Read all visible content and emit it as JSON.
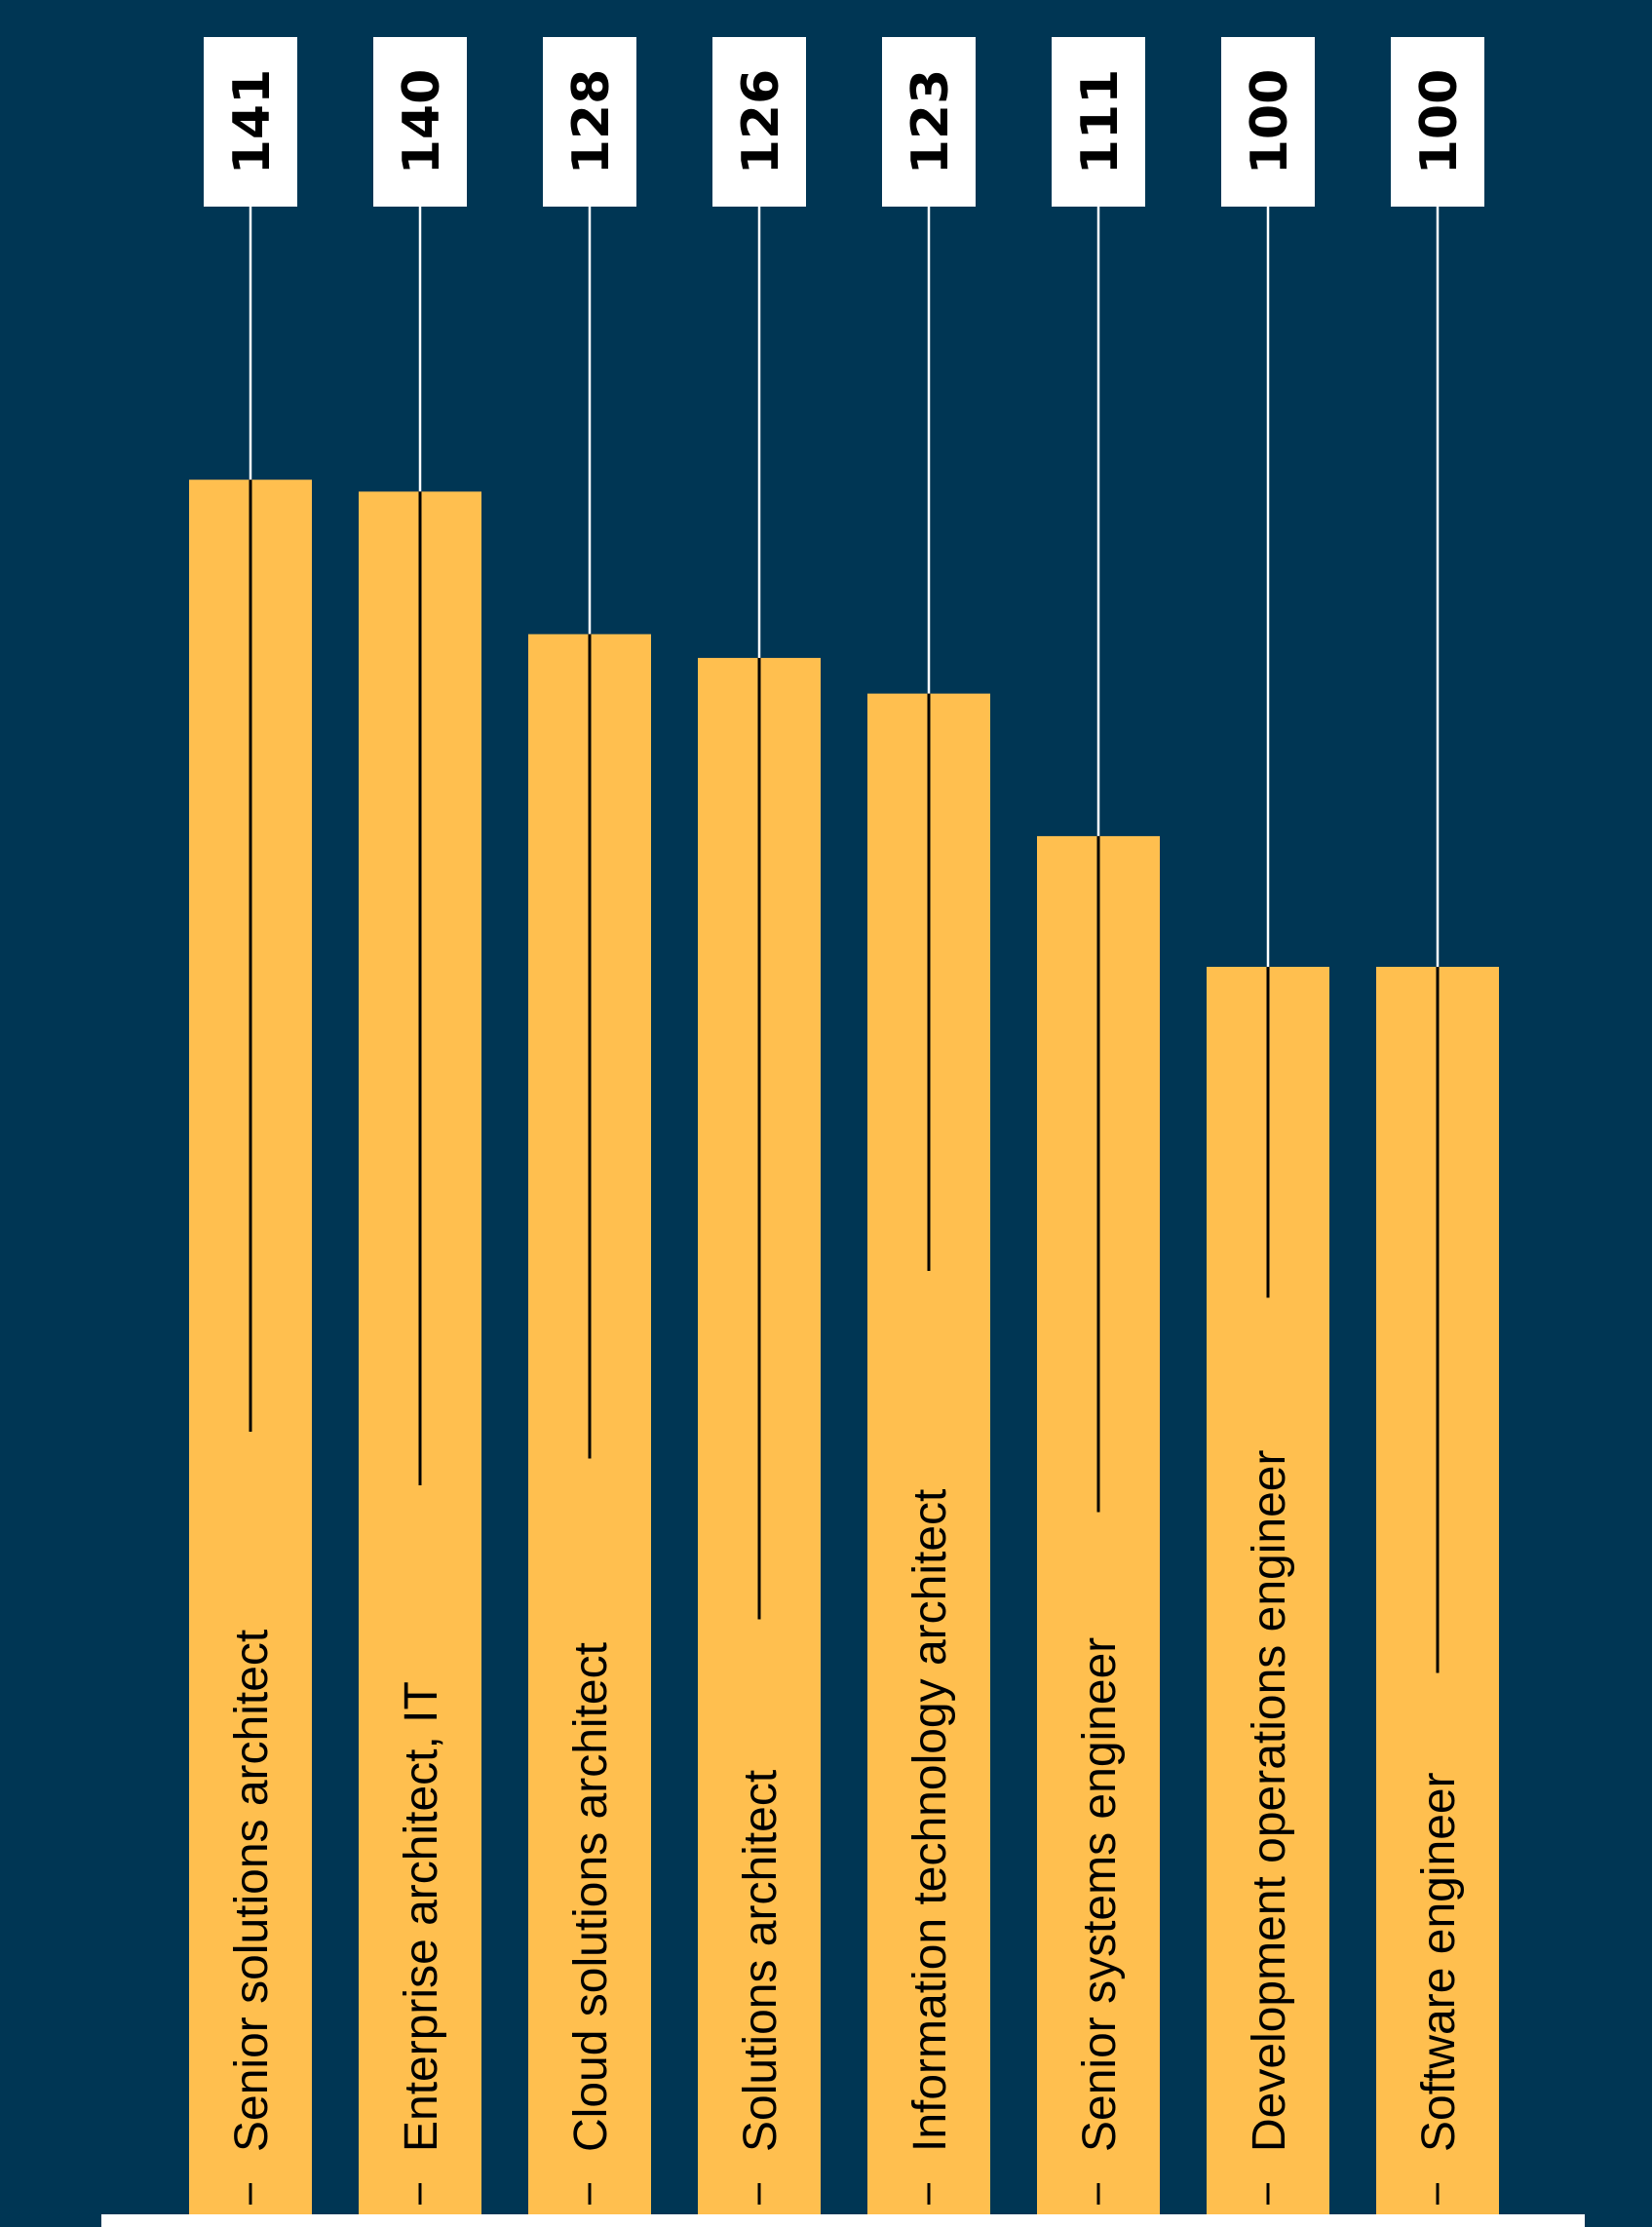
{
  "chart_data": {
    "type": "bar",
    "orientation": "vertical",
    "categories": [
      "Senior solutions architect",
      "Enterprise architect, IT",
      "Cloud solutions architect",
      "Solutions architect",
      "Information technology architect",
      "Senior systems engineer",
      "Development operations engineer",
      "Software engineer"
    ],
    "values": [
      141,
      140,
      128,
      126,
      123,
      111,
      100,
      100
    ],
    "value_labels": [
      "141",
      "140",
      "128",
      "126",
      "123",
      "111",
      "100",
      "100"
    ],
    "title": "",
    "xlabel": "",
    "ylabel": "",
    "grid": false,
    "legend": "none",
    "colors": {
      "background": "#003654",
      "bar": "#FFBF4F",
      "label_box": "#FFFFFF",
      "leader_line_top": "#FFFFFF",
      "leader_line_bar": "#000000",
      "baseline": "#FFFFFF"
    }
  }
}
